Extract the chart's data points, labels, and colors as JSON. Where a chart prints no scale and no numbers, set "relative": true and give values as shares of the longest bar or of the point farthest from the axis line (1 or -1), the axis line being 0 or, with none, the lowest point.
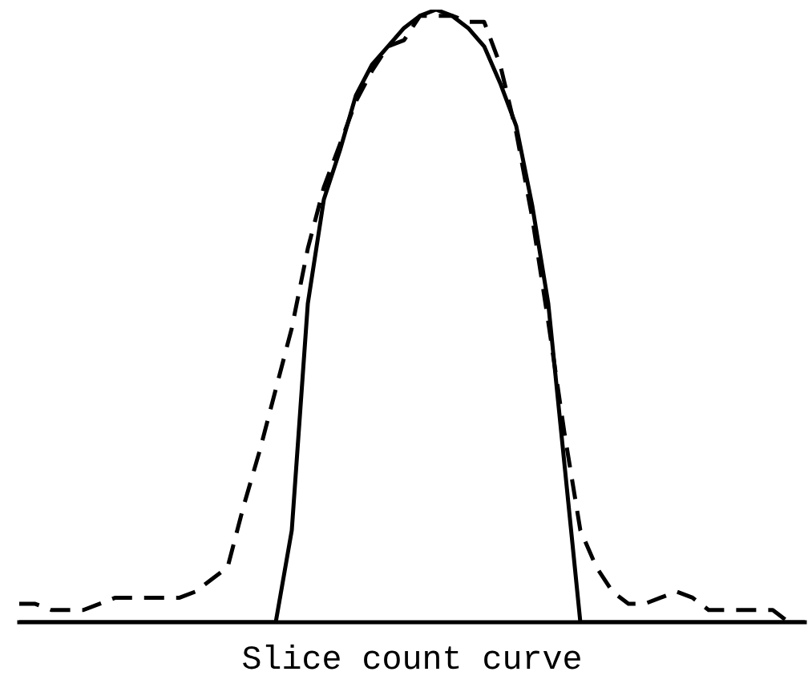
{
  "chart_data": {
    "type": "line",
    "xlabel": "Slice count curve",
    "relative": true,
    "categories": [
      null,
      null,
      null,
      null,
      null,
      null,
      null,
      null,
      null,
      null,
      null,
      null,
      null,
      null,
      null,
      null,
      null,
      null,
      null,
      null,
      null,
      null,
      null,
      null,
      null,
      null,
      null,
      null,
      null,
      null,
      null,
      null,
      null,
      null,
      null,
      null,
      null,
      null,
      null,
      null,
      null,
      null,
      null,
      null,
      null,
      null,
      null,
      null,
      null,
      null
    ],
    "series": [
      {
        "color": "#000000",
        "line_style": "solid",
        "values": [
          0,
          0,
          0,
          0,
          0,
          0,
          0,
          0,
          0,
          0,
          0,
          0,
          0,
          0,
          0,
          0,
          0,
          0.15,
          0.52,
          0.69,
          0.77,
          0.86,
          0.91,
          0.94,
          0.97,
          0.99,
          1.0,
          0.99,
          0.97,
          0.94,
          0.88,
          0.81,
          0.68,
          0.52,
          0.26,
          0,
          0,
          0,
          0,
          0,
          0,
          0,
          0,
          0,
          0,
          0,
          0,
          0,
          0,
          0
        ]
      },
      {
        "color": "#000000",
        "line_style": "dashed",
        "values": [
          0.03,
          0.03,
          0.02,
          0.02,
          0.02,
          0.03,
          0.04,
          0.04,
          0.04,
          0.04,
          0.04,
          0.05,
          0.07,
          0.09,
          0.19,
          0.28,
          0.38,
          0.48,
          0.61,
          0.71,
          0.78,
          0.85,
          0.9,
          0.94,
          0.95,
          0.99,
          0.99,
          0.99,
          0.98,
          0.98,
          0.91,
          0.8,
          0.66,
          0.49,
          0.31,
          0.15,
          0.09,
          0.05,
          0.03,
          0.03,
          0.04,
          0.05,
          0.04,
          0.02,
          0.02,
          0.02,
          0.02,
          0.02,
          0,
          null
        ]
      }
    ]
  }
}
